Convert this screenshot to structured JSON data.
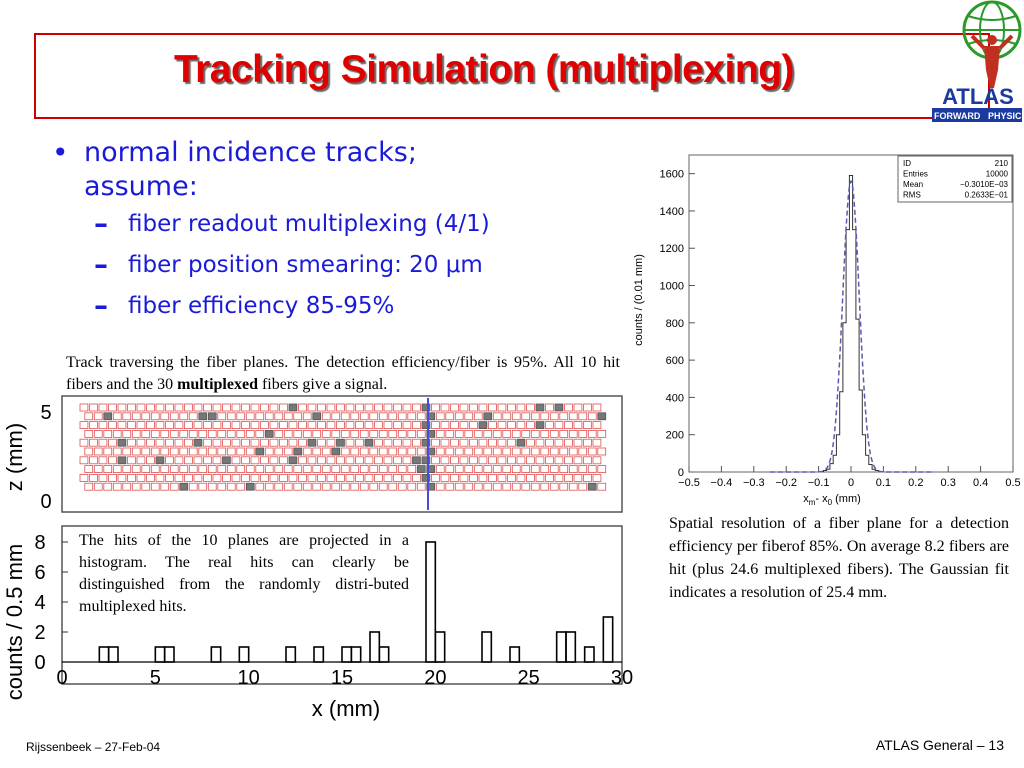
{
  "title": "Tracking Simulation (multiplexing)",
  "logo": {
    "text": "ATLAS",
    "subtext_left": "FORWARD",
    "subtext_right": "PHYSICS"
  },
  "bullet": {
    "main": "normal incidence tracks;",
    "main_cont": "assume:",
    "subs": [
      "fiber readout multiplexing (4/1)",
      "fiber position smearing: 20 μm",
      "fiber efficiency 85-95%"
    ]
  },
  "caption_top": {
    "part1": "Track traversing the fiber planes. The detection efficiency/fiber is 95%. All 10 hit fibers and the 30 ",
    "bold": "multiplexed",
    "part2": " fibers give a signal."
  },
  "caption_hist": "The hits of the 10 planes are projected in a histogram. The real hits can clearly be distinguished from the randomly distri-buted multiplexed hits.",
  "caption_right": "Spatial resolution of a fiber plane for a detection efficiency per fiberof 85%. On average 8.2 fibers are hit (plus 24.6 multiplexed fibers). The Gaussian fit indicates a resolution of 25.4 mm.",
  "footer": {
    "left": "Rijssenbeek – 27-Feb-04",
    "right": "ATLAS General – 13"
  },
  "colors": {
    "title": "#e00000",
    "bullets": "#1a1ad8",
    "fiber": "#e05050",
    "hit_fiber": "#777777",
    "track": "#4a4ae0"
  },
  "fiber_display": {
    "ylabel": "z (mm)",
    "yticks": [
      "5",
      "0"
    ],
    "hit_count": 10,
    "multiplexed_count": 30
  },
  "chart_data": [
    {
      "type": "bar",
      "title": "",
      "xlabel": "x (mm)",
      "ylabel": "counts / 0.5 mm",
      "xlim": [
        0,
        30
      ],
      "ylim": [
        0,
        9
      ],
      "xticks": [
        "0",
        "5",
        "10",
        "15",
        "20",
        "25",
        "30"
      ],
      "yticks": [
        "0",
        "2",
        "4",
        "6",
        "8"
      ],
      "bin_width": 0.5,
      "bins": [
        {
          "x": 2.0,
          "y": 1
        },
        {
          "x": 2.5,
          "y": 1
        },
        {
          "x": 5.0,
          "y": 1
        },
        {
          "x": 5.5,
          "y": 1
        },
        {
          "x": 8.0,
          "y": 1
        },
        {
          "x": 9.5,
          "y": 1
        },
        {
          "x": 12.0,
          "y": 1
        },
        {
          "x": 13.5,
          "y": 1
        },
        {
          "x": 15.0,
          "y": 1
        },
        {
          "x": 15.5,
          "y": 1
        },
        {
          "x": 16.5,
          "y": 2
        },
        {
          "x": 17.0,
          "y": 1
        },
        {
          "x": 19.5,
          "y": 8
        },
        {
          "x": 20.0,
          "y": 2
        },
        {
          "x": 22.5,
          "y": 2
        },
        {
          "x": 24.0,
          "y": 1
        },
        {
          "x": 26.5,
          "y": 2
        },
        {
          "x": 27.0,
          "y": 2
        },
        {
          "x": 28.0,
          "y": 1
        },
        {
          "x": 29.0,
          "y": 3
        }
      ]
    },
    {
      "type": "bar",
      "title": "",
      "xlabel": "x_m - x_0 (mm)",
      "ylabel": "counts / (0.01 mm)",
      "xlim": [
        -0.5,
        0.5
      ],
      "ylim": [
        0,
        1700
      ],
      "xticks": [
        "−0.5",
        "−0.4",
        "−0.3",
        "−0.2",
        "−0.1",
        "0",
        "0.1",
        "0.2",
        "0.3",
        "0.4",
        "0.5"
      ],
      "yticks": [
        "0",
        "200",
        "400",
        "600",
        "800",
        "1000",
        "1200",
        "1400",
        "1600"
      ],
      "stats": [
        {
          "key": "ID",
          "value": "210"
        },
        {
          "key": "Entries",
          "value": "10000"
        },
        {
          "key": "Mean",
          "value": "−0.3010E−03"
        },
        {
          "key": "RMS",
          "value": "0.2633E−01"
        }
      ],
      "histogram": {
        "bin_width": 0.01,
        "centers": [
          -0.08,
          -0.07,
          -0.06,
          -0.05,
          -0.04,
          -0.03,
          -0.02,
          -0.01,
          0.0,
          0.01,
          0.02,
          0.03,
          0.04,
          0.05,
          0.06,
          0.07,
          0.08
        ],
        "values": [
          8,
          15,
          45,
          90,
          200,
          430,
          800,
          1300,
          1590,
          1300,
          820,
          440,
          200,
          90,
          40,
          15,
          8
        ]
      },
      "fit": {
        "type": "gaussian",
        "mean": 0.0,
        "sigma": 0.0254,
        "amplitude": 1560
      }
    }
  ]
}
